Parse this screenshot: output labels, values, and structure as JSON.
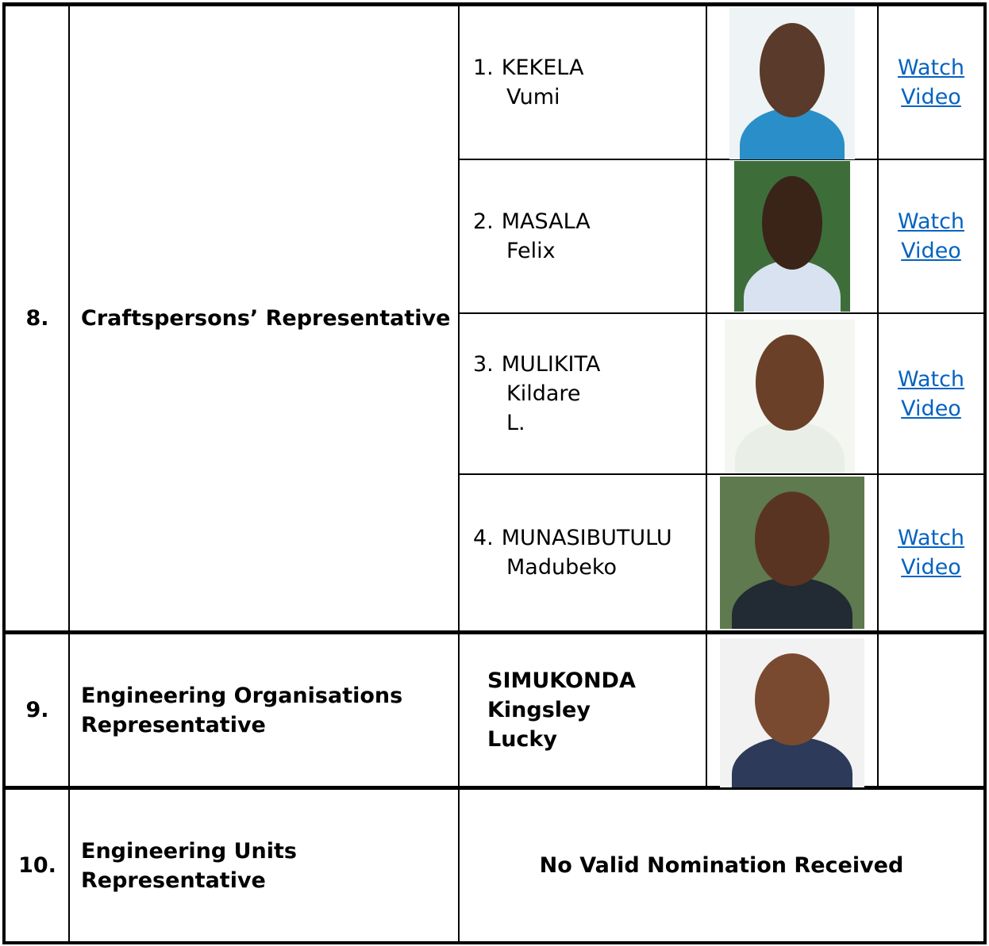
{
  "rows": [
    {
      "number": "8.",
      "position": [
        "Craftspersons’ Representative"
      ],
      "candidates": [
        {
          "index": "1.",
          "name": [
            "KEKELA",
            "Vumi"
          ],
          "link": "Watch Video"
        },
        {
          "index": "2.",
          "name": [
            "MASALA",
            "Felix"
          ],
          "link": "Watch Video"
        },
        {
          "index": "3.",
          "name": [
            "MULIKITA",
            "Kildare",
            "L."
          ],
          "link": "Watch Video"
        },
        {
          "index": "4.",
          "name": [
            "MUNASIBUTULU",
            "Madubeko"
          ],
          "link": "Watch Video"
        }
      ]
    },
    {
      "number": "9.",
      "position": [
        "Engineering Organisations",
        "Representative"
      ],
      "candidates": [
        {
          "name": [
            "SIMUKONDA",
            "Kingsley",
            "Lucky"
          ]
        }
      ]
    },
    {
      "number": "10.",
      "position": [
        "Engineering Units",
        "Representative"
      ],
      "note": "No Valid Nomination Received"
    }
  ]
}
